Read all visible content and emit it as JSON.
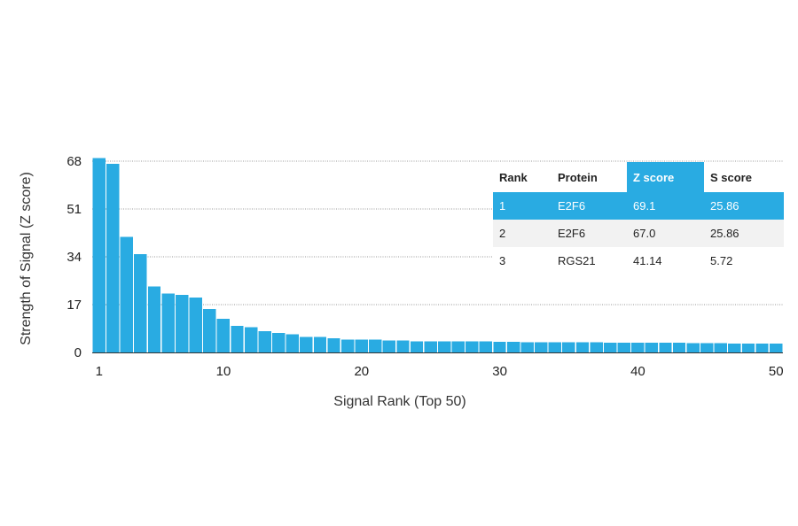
{
  "chart_data": {
    "type": "bar",
    "title": "",
    "xlabel": "Signal Rank (Top 50)",
    "ylabel": "Strength of Signal (Z score)",
    "ylim": [
      0,
      68
    ],
    "yticks": [
      0,
      17,
      34,
      51,
      68
    ],
    "xticks": [
      1,
      10,
      20,
      30,
      40,
      50
    ],
    "grid": true,
    "colors": {
      "bar": "#29abe2",
      "highlight": "#29abe2"
    },
    "x": [
      1,
      2,
      3,
      4,
      5,
      6,
      7,
      8,
      9,
      10,
      11,
      12,
      13,
      14,
      15,
      16,
      17,
      18,
      19,
      20,
      21,
      22,
      23,
      24,
      25,
      26,
      27,
      28,
      29,
      30,
      31,
      32,
      33,
      34,
      35,
      36,
      37,
      38,
      39,
      40,
      41,
      42,
      43,
      44,
      45,
      46,
      47,
      48,
      49,
      50
    ],
    "values": [
      69.1,
      67.0,
      41.14,
      35.0,
      23.5,
      21.0,
      20.5,
      19.5,
      15.5,
      12.0,
      9.5,
      9.0,
      7.5,
      7.0,
      6.5,
      5.5,
      5.5,
      5.0,
      4.5,
      4.5,
      4.5,
      4.2,
      4.2,
      4.0,
      4.0,
      4.0,
      4.0,
      3.9,
      3.9,
      3.8,
      3.8,
      3.7,
      3.7,
      3.7,
      3.6,
      3.6,
      3.6,
      3.5,
      3.5,
      3.5,
      3.4,
      3.4,
      3.4,
      3.3,
      3.3,
      3.3,
      3.2,
      3.2,
      3.2,
      3.1
    ],
    "table": {
      "headers": [
        "Rank",
        "Protein",
        "Z score",
        "S score"
      ],
      "highlight_column": 2,
      "rows": [
        [
          "1",
          "E2F6",
          "69.1",
          "25.86"
        ],
        [
          "2",
          "E2F6",
          "67.0",
          "25.86"
        ],
        [
          "3",
          "RGS21",
          "41.14",
          "5.72"
        ]
      ]
    }
  }
}
